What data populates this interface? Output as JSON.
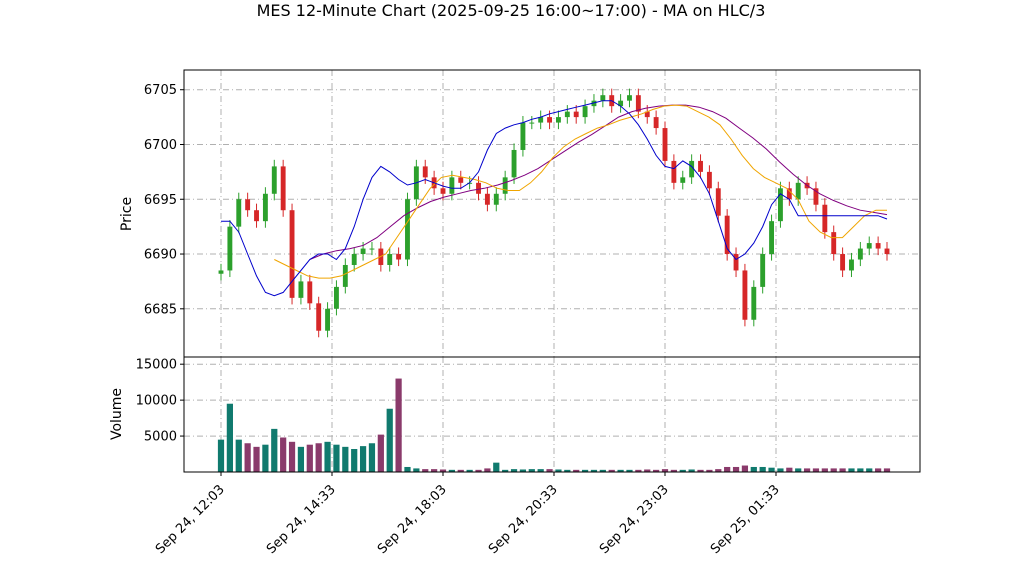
{
  "chart_data": {
    "type": "candlestick",
    "title": "MES 12-Minute Chart (2025-09-25 16:00~17:00) - MA on HLC/3",
    "price_panel": {
      "ylabel": "Price",
      "yticks": [
        6685,
        6690,
        6695,
        6700,
        6705
      ],
      "ylim": [
        6680.6,
        6706.8
      ],
      "grid": true
    },
    "volume_panel": {
      "ylabel": "Volume",
      "yticks": [
        5000,
        10000,
        15000
      ],
      "ytick_labels": [
        "5000",
        "10000",
        "15000"
      ],
      "ylim": [
        0,
        16000
      ],
      "grid": true
    },
    "x_tick_labels": [
      "Sep 24, 12:03",
      "Sep 24, 14:33",
      "Sep 24, 18:03",
      "Sep 24, 20:33",
      "Sep 24, 23:03",
      "Sep 25, 01:33"
    ],
    "x_tick_bar_index": [
      0,
      12.5,
      25,
      37.5,
      50,
      62.5
    ],
    "bar_count": 76,
    "colors": {
      "up": "#2ca02c",
      "down": "#d62728",
      "vol_up": "#107a6e",
      "vol_down": "#8a3a6b",
      "ma_fast": "#0000cc",
      "ma_mid": "#f0a500",
      "ma_slow": "#800080",
      "grid": "#b0b0b0"
    },
    "close": [
      6688.5,
      6692.5,
      6695.0,
      6694.0,
      6693.0,
      6695.5,
      6698.0,
      6694.0,
      6686.0,
      6687.5,
      6685.5,
      6683.0,
      6685.0,
      6687.0,
      6689.0,
      6690.0,
      6690.5,
      6690.5,
      6689.0,
      6690.0,
      6689.5,
      6695.0,
      6698.0,
      6697.0,
      6696.0,
      6695.5,
      6697.0,
      6696.5,
      6696.5,
      6695.5,
      6694.5,
      6695.5,
      6697.0,
      6699.5,
      6702.0,
      6702.0,
      6702.5,
      6702.0,
      6702.5,
      6703.0,
      6702.5,
      6703.5,
      6704.0,
      6704.5,
      6703.5,
      6704.0,
      6704.5,
      6703.0,
      6702.5,
      6701.5,
      6698.5,
      6696.5,
      6697.0,
      6698.5,
      6697.5,
      6696.0,
      6693.5,
      6690.0,
      6688.5,
      6684.0,
      6687.0,
      6690.0,
      6693.0,
      6696.0,
      6695.0,
      6696.5,
      6696.0,
      6694.5,
      6692.0,
      6690.0,
      6688.5,
      6689.5,
      6690.5,
      6691.0,
      6690.5,
      6690.0
    ],
    "volume": [
      4500,
      9500,
      4500,
      4000,
      3500,
      3800,
      6000,
      4800,
      4200,
      3500,
      3800,
      4000,
      4200,
      3800,
      3500,
      3200,
      3600,
      4000,
      5200,
      8800,
      13000,
      700,
      500,
      400,
      400,
      350,
      300,
      300,
      300,
      300,
      500,
      1300,
      300,
      400,
      350,
      400,
      400,
      400,
      350,
      300,
      300,
      300,
      300,
      300,
      300,
      300,
      300,
      300,
      350,
      300,
      400,
      300,
      300,
      350,
      300,
      300,
      400,
      700,
      700,
      900,
      700,
      700,
      600,
      500,
      600,
      500,
      500,
      500,
      500,
      500,
      500,
      500,
      500,
      500,
      500,
      500
    ],
    "ma_fast": [
      6693.0,
      6693.0,
      6692.0,
      6690.0,
      6688.0,
      6686.5,
      6686.2,
      6686.5,
      6687.5,
      6688.5,
      6689.5,
      6690.0,
      6690.0,
      6689.5,
      6690.5,
      6692.5,
      6695.0,
      6697.0,
      6698.0,
      6697.5,
      6696.8,
      6696.3,
      6696.5,
      6696.8,
      6696.5,
      6696.2,
      6696.0,
      6696.0,
      6696.5,
      6697.5,
      6699.5,
      6701.0,
      6701.5,
      6701.8,
      6702.0,
      6702.3,
      6702.5,
      6702.8,
      6703.0,
      6703.2,
      6703.4,
      6703.6,
      6703.8,
      6704.0,
      6704.0,
      6703.5,
      6702.8,
      6701.8,
      6700.5,
      6699.0,
      6698.0,
      6697.8,
      6698.5,
      6698.0,
      6697.0,
      6695.5,
      6693.0,
      6690.5,
      6689.5,
      6690.0,
      6691.0,
      6692.5,
      6694.5,
      6695.5,
      6695.0,
      6693.5,
      6693.5,
      6693.5,
      6693.5,
      6693.5,
      6693.5,
      6693.5,
      6693.5,
      6693.5,
      6693.5,
      6693.2
    ],
    "ma_mid": [
      6689.5,
      6689.0,
      6688.5,
      6688.0,
      6687.8,
      6687.8,
      6688.0,
      6688.5,
      6689.0,
      6689.5,
      6690.0,
      6691.5,
      6693.0,
      6694.5,
      6696.0,
      6697.0,
      6697.2,
      6697.0,
      6696.8,
      6696.5,
      6696.0,
      6695.8,
      6695.8,
      6696.5,
      6697.5,
      6698.8,
      6699.8,
      6700.5,
      6701.0,
      6701.5,
      6701.8,
      6702.2,
      6702.5,
      6702.8,
      6703.2,
      6703.5,
      6703.6,
      6703.5,
      6703.0,
      6702.5,
      6701.8,
      6700.5,
      6699.0,
      6697.8,
      6697.0,
      6696.5,
      6696.0,
      6695.0,
      6693.0,
      6692.0,
      6691.5,
      6691.5,
      6692.5,
      6693.5,
      6694.0,
      6694.0
    ],
    "ma_slow": [
      6689.5,
      6690.0,
      6690.3,
      6690.5,
      6690.8,
      6691.5,
      6692.5,
      6693.5,
      6694.2,
      6694.8,
      6695.2,
      6695.5,
      6695.8,
      6696.0,
      6696.3,
      6696.7,
      6697.2,
      6697.8,
      6698.6,
      6699.4,
      6700.2,
      6700.9,
      6701.7,
      6702.5,
      6703.0,
      6703.3,
      6703.5,
      6703.6,
      6703.6,
      6703.4,
      6703.0,
      6702.4,
      6701.5,
      6700.6,
      6699.6,
      6698.4,
      6697.3,
      6696.3,
      6695.5,
      6694.9,
      6694.4,
      6694.0,
      6693.8,
      6693.6
    ]
  }
}
